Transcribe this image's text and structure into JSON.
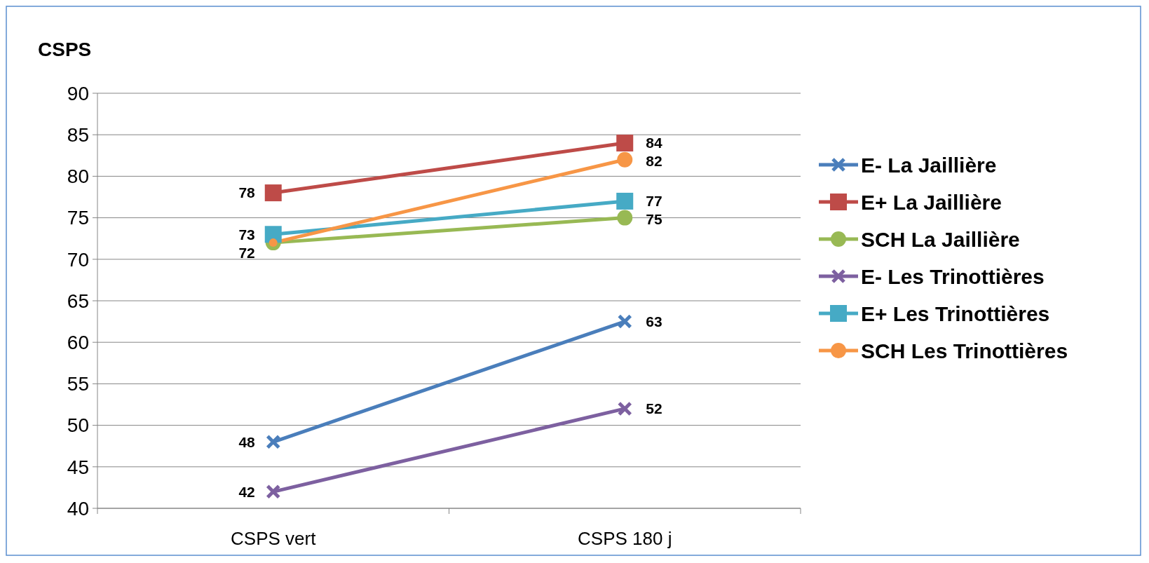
{
  "chart_data": {
    "type": "line",
    "ylabel": "CSPS",
    "categories": [
      "CSPS vert",
      "CSPS 180 j"
    ],
    "ylim": [
      40,
      90
    ],
    "yticks": [
      40,
      45,
      50,
      55,
      60,
      65,
      70,
      75,
      80,
      85,
      90
    ],
    "grid": "y",
    "legend": "right",
    "series": [
      {
        "name": "E- La Jaillière",
        "color": "#4a7ebb",
        "marker": "cross",
        "values": [
          48,
          62.5
        ],
        "value_labels": [
          "48",
          "63"
        ]
      },
      {
        "name": "E+ La Jaillière",
        "color": "#be4b48",
        "marker": "square",
        "values": [
          78,
          84
        ],
        "value_labels": [
          "78",
          "84"
        ]
      },
      {
        "name": "SCH La Jaillière",
        "color": "#98b954",
        "marker": "circle",
        "values": [
          72,
          75
        ],
        "value_labels": [
          "72",
          "75"
        ]
      },
      {
        "name": "E- Les Trinottières",
        "color": "#7d60a0",
        "marker": "cross",
        "values": [
          42,
          52
        ],
        "value_labels": [
          "42",
          "52"
        ]
      },
      {
        "name": "E+ Les Trinottières",
        "color": "#46aac5",
        "marker": "square",
        "values": [
          73,
          77
        ],
        "value_labels": [
          "73",
          "77"
        ]
      },
      {
        "name": "SCH Les Trinottières",
        "color": "#f79646",
        "marker": "circle",
        "values": [
          72,
          82
        ],
        "value_labels": [
          null,
          "82"
        ]
      }
    ]
  }
}
